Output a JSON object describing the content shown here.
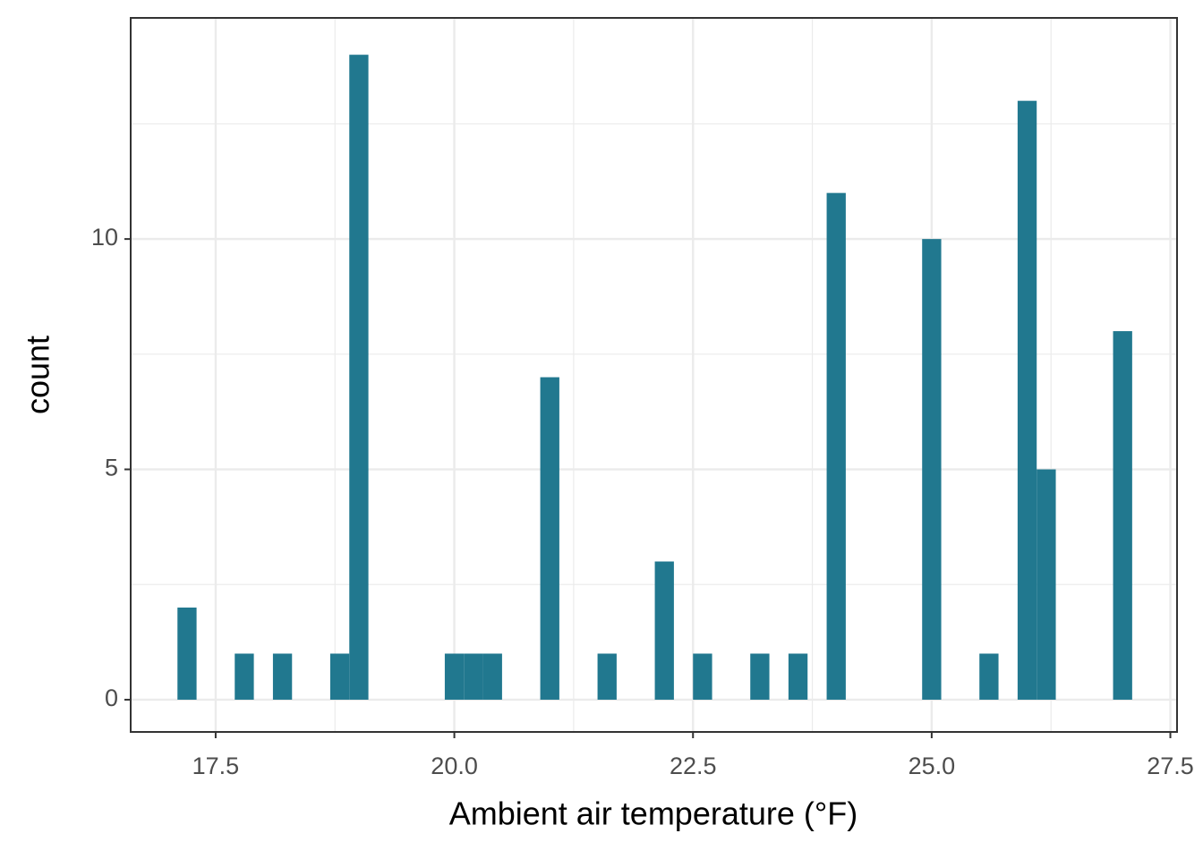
{
  "chart_data": {
    "type": "histogram",
    "xlabel": "Ambient air temperature (°F)",
    "ylabel": "count",
    "bins": [
      17.1,
      17.3,
      17.5,
      17.7,
      17.9,
      18.1,
      18.3,
      18.5,
      18.7,
      18.9,
      19.1,
      19.3,
      19.5,
      19.7,
      19.9,
      20.1,
      20.3,
      20.5,
      20.7,
      20.9,
      21.1,
      21.3,
      21.5,
      21.7,
      21.9,
      22.1,
      22.3,
      22.5,
      22.7,
      22.9,
      23.1,
      23.3,
      23.5,
      23.7,
      23.9,
      24.1,
      24.3,
      24.5,
      24.7,
      24.9,
      25.1,
      25.3,
      25.5,
      25.7,
      25.9,
      26.1,
      26.3,
      26.5,
      26.7,
      26.9,
      27.1
    ],
    "values": [
      2,
      0,
      0,
      1,
      0,
      1,
      0,
      0,
      1,
      14,
      0,
      0,
      0,
      0,
      1,
      1,
      1,
      0,
      0,
      7,
      0,
      0,
      1,
      0,
      0,
      3,
      0,
      1,
      0,
      0,
      1,
      0,
      1,
      0,
      11,
      0,
      0,
      0,
      0,
      10,
      0,
      0,
      1,
      0,
      13,
      5,
      0,
      0,
      0,
      8
    ],
    "color": "#21788f",
    "xlim": [
      16.61,
      27.57
    ],
    "xticks": [
      17.5,
      {
        "value": 20,
        "label": "20.0"
      },
      22.5,
      {
        "value": 25,
        "label": "25.0"
      },
      27.5
    ],
    "ylim": [
      -0.7,
      14.8
    ],
    "yticks": [
      0,
      5,
      10
    ],
    "grid": true
  }
}
